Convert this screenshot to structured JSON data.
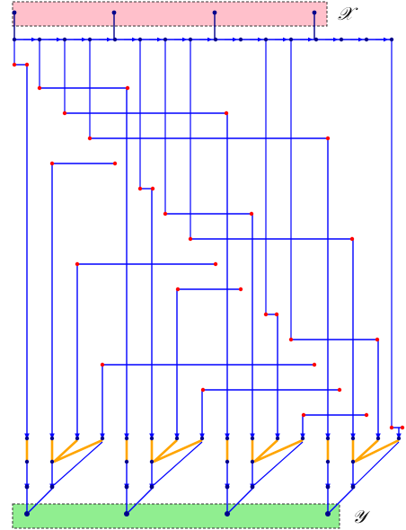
{
  "labels": {
    "input": "𝒳",
    "output": "𝒴"
  },
  "colors": {
    "input_box": "#ffc0cb",
    "output_box": "#90ee90",
    "edge": "#0000ff",
    "relay_dot": "#ff0000",
    "aggregate_edge": "#ffa500",
    "node": "#00008b",
    "box_border": "#333333"
  }
}
